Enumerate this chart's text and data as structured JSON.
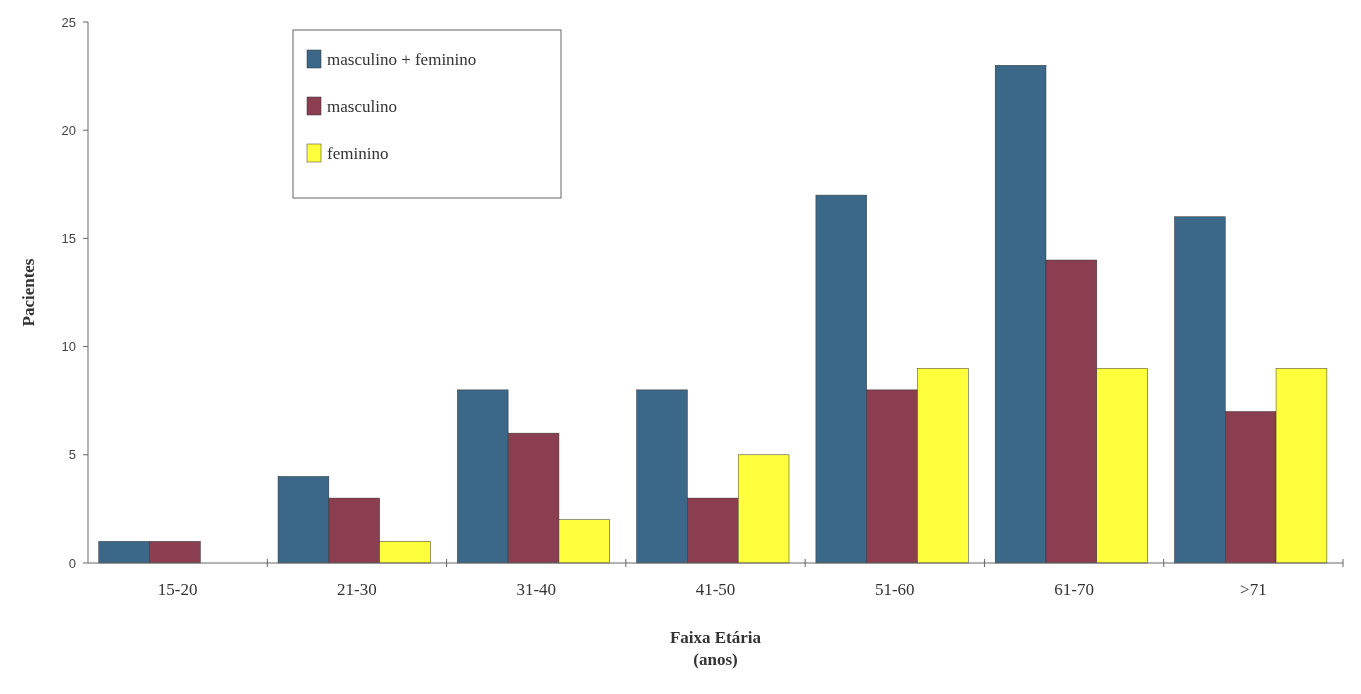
{
  "chart_data": {
    "type": "bar",
    "xlabel": "Faixa Etária\n(anos)",
    "ylabel": "Pacientes",
    "categories": [
      "15-20",
      "21-30",
      "31-40",
      "41-50",
      "51-60",
      "61-70",
      ">71"
    ],
    "series": [
      {
        "name": "masculino + feminino",
        "color": "#3b6888",
        "values": [
          1,
          4,
          8,
          8,
          17,
          23,
          16
        ]
      },
      {
        "name": "masculino",
        "color": "#8a3e50",
        "values": [
          1,
          3,
          6,
          3,
          8,
          14,
          7
        ]
      },
      {
        "name": "feminino",
        "color": "#ffff3c",
        "values": [
          0,
          1,
          2,
          5,
          9,
          9,
          9
        ]
      }
    ],
    "ylim": [
      0,
      25
    ],
    "yticks": [
      0,
      5,
      10,
      15,
      20,
      25
    ],
    "legend": "top left"
  }
}
